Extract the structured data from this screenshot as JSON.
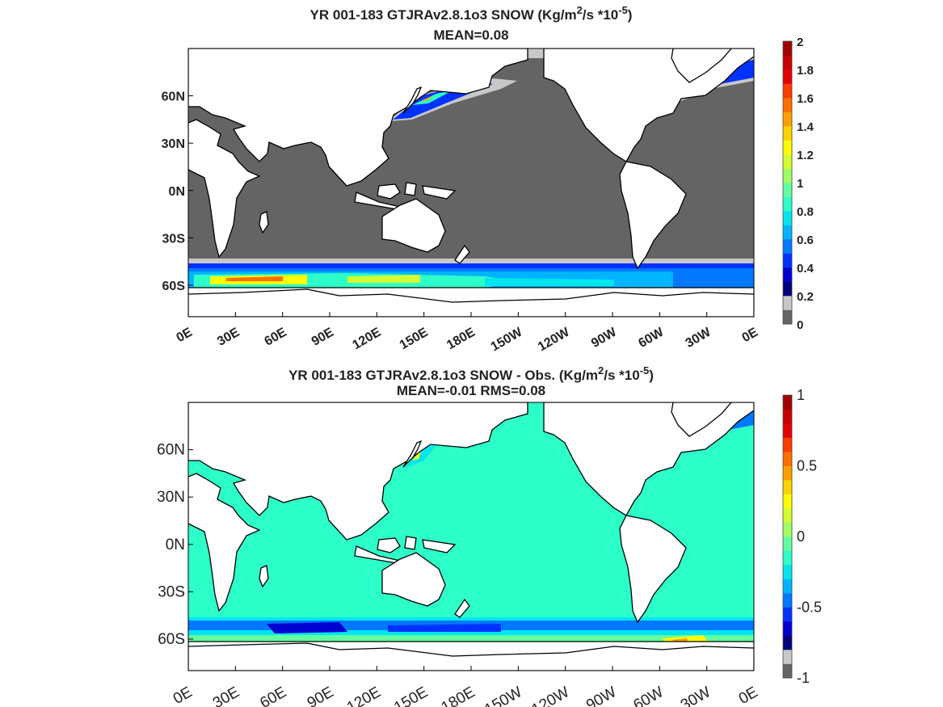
{
  "chart_data": [
    {
      "type": "heatmap",
      "map": "global-map-0-360E",
      "title_line1_parts": [
        "YR 001-183 GTJRAv2.8.1o3 SNOW (Kg/m",
        "2",
        "/s   *10",
        "-5",
        ")"
      ],
      "title_line2": "MEAN=0.08",
      "lat_labels": [
        "60N",
        "30N",
        "0N",
        "30S",
        "60S"
      ],
      "lat_values": [
        60,
        30,
        0,
        -30,
        -60
      ],
      "lon_labels": [
        "0E",
        "30E",
        "60E",
        "90E",
        "120E",
        "150E",
        "180E",
        "150W",
        "120W",
        "90W",
        "60W",
        "30W",
        "0E"
      ],
      "lon_values": [
        0,
        30,
        60,
        90,
        120,
        150,
        180,
        210,
        240,
        270,
        300,
        330,
        360
      ],
      "ylim": [
        -80,
        90
      ],
      "xlim": [
        0,
        360
      ],
      "colorbar": {
        "labels": [
          "0",
          "0.2",
          "0.4",
          "0.6",
          "0.8",
          "1",
          "1.2",
          "1.4",
          "1.6",
          "1.8",
          "2"
        ],
        "range": [
          0,
          2
        ],
        "colors": [
          "#646464",
          "#c8c8c8",
          "#00007d",
          "#0000d2",
          "#0032ff",
          "#0078ff",
          "#00b4ff",
          "#00e6f0",
          "#2dffc8",
          "#64ffa0",
          "#a0ff64",
          "#d2ff32",
          "#ffff00",
          "#ffd200",
          "#ffa000",
          "#ff6e00",
          "#ff3c00",
          "#e60000",
          "#c80000",
          "#a00000"
        ]
      },
      "background_color": "#646464"
    },
    {
      "type": "heatmap",
      "map": "global-map-0-360E",
      "title_line1_parts": [
        "YR 001-183 GTJRAv2.8.1o3 SNOW - Obs. (Kg/m",
        "2",
        "/s *10",
        "-5",
        ")"
      ],
      "title_line2": "MEAN=-0.01   RMS=0.08",
      "lat_labels": [
        "60N",
        "30N",
        "0N",
        "30S",
        "60S"
      ],
      "lat_values": [
        60,
        30,
        0,
        -30,
        -60
      ],
      "lon_labels": [
        "0E",
        "30E",
        "60E",
        "90E",
        "120E",
        "150E",
        "180E",
        "150W",
        "120W",
        "90W",
        "60W",
        "30W",
        "0E"
      ],
      "lon_values": [
        0,
        30,
        60,
        90,
        120,
        150,
        180,
        210,
        240,
        270,
        300,
        330,
        360
      ],
      "ylim": [
        -80,
        90
      ],
      "xlim": [
        0,
        360
      ],
      "colorbar": {
        "labels": [
          "1",
          "0.5",
          "0",
          "-0.5",
          "-1"
        ],
        "range": [
          -1,
          1
        ],
        "colors": [
          "#646464",
          "#c8c8c8",
          "#00007d",
          "#0000d2",
          "#0032ff",
          "#0078ff",
          "#00b4ff",
          "#00e6f0",
          "#2dffc8",
          "#64ffa0",
          "#a0ff64",
          "#d2ff32",
          "#ffff00",
          "#ffd200",
          "#ffa000",
          "#ff6e00",
          "#ff3c00",
          "#e60000",
          "#c80000",
          "#a00000"
        ]
      },
      "background_color": "#2dffc8"
    }
  ]
}
